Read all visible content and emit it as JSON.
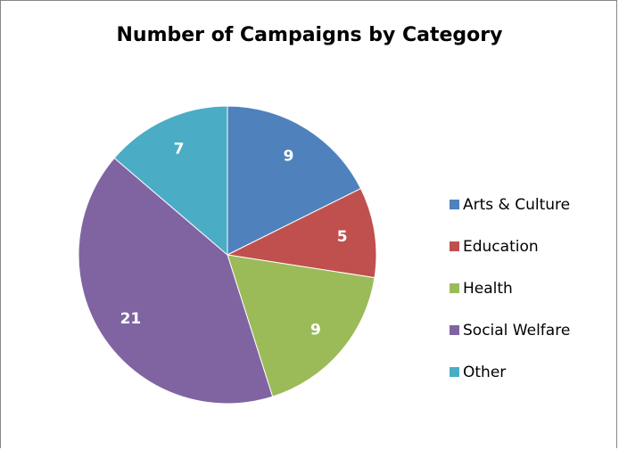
{
  "chart_data": {
    "type": "pie",
    "title": "Number of Campaigns by Category",
    "categories": [
      "Arts & Culture",
      "Education",
      "Health",
      "Social Welfare",
      "Other"
    ],
    "values": [
      9,
      5,
      9,
      21,
      7
    ],
    "colors": [
      "#4F81BD",
      "#C0504D",
      "#9BBB59",
      "#8064A2",
      "#4BACC6"
    ],
    "data_labels_shown": true,
    "legend_position": "right"
  }
}
